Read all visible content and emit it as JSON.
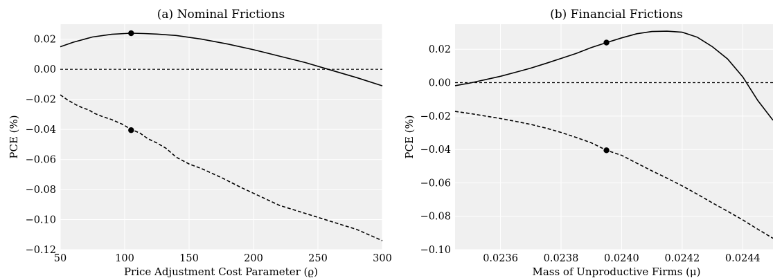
{
  "chart_data": [
    {
      "type": "line",
      "title": "(a) Nominal Frictions",
      "xlabel": "Price Adjustment Cost Parameter (ϱ)",
      "ylabel": "PCE (%)",
      "xlim": [
        50,
        300
      ],
      "ylim": [
        -0.12,
        0.03
      ],
      "xticks": [
        50,
        100,
        150,
        200,
        250,
        300
      ],
      "xtick_labels": [
        "50",
        "100",
        "150",
        "200",
        "250",
        "300"
      ],
      "yticks": [
        -0.12,
        -0.1,
        -0.08,
        -0.06,
        -0.04,
        -0.02,
        0.0,
        0.02
      ],
      "ytick_labels": [
        "−0.12",
        "−0.10",
        "−0.08",
        "−0.06",
        "−0.04",
        "−0.02",
        "0.00",
        "0.02"
      ],
      "grid": true,
      "series": [
        {
          "style": "solid",
          "x": [
            50,
            60,
            75,
            90,
            100,
            105,
            115,
            125,
            140,
            160,
            180,
            200,
            220,
            240,
            260,
            280,
            300
          ],
          "y": [
            0.015,
            0.018,
            0.0215,
            0.0233,
            0.0238,
            0.024,
            0.0238,
            0.0234,
            0.0225,
            0.02,
            0.0168,
            0.013,
            0.0088,
            0.0045,
            -0.0005,
            -0.0055,
            -0.011
          ]
        },
        {
          "style": "dashed",
          "x": [
            50,
            55,
            62,
            67,
            72,
            77,
            82,
            90,
            98,
            105,
            112,
            118,
            125,
            132,
            140,
            150,
            160,
            175,
            190,
            205,
            220,
            235,
            250,
            265,
            280,
            300
          ],
          "y": [
            -0.017,
            -0.02,
            -0.0235,
            -0.0255,
            -0.027,
            -0.0295,
            -0.0312,
            -0.0335,
            -0.0365,
            -0.04,
            -0.0425,
            -0.0462,
            -0.049,
            -0.0525,
            -0.0585,
            -0.063,
            -0.0662,
            -0.072,
            -0.0785,
            -0.0845,
            -0.0905,
            -0.0945,
            -0.0985,
            -0.1025,
            -0.1065,
            -0.114
          ]
        }
      ],
      "markers": [
        {
          "x": 105,
          "y": 0.024
        },
        {
          "x": 105,
          "y": -0.0405
        }
      ],
      "reference_lines": [
        {
          "axis": "y",
          "value": 0.0,
          "style": "dashed"
        }
      ]
    },
    {
      "type": "line",
      "title": "(b) Financial Frictions",
      "xlabel": "Mass of Unproductive Firms (μ)",
      "ylabel": "PCE (%)",
      "xlim": [
        0.02345,
        0.0245
      ],
      "ylim": [
        -0.1,
        0.035
      ],
      "xticks": [
        0.0236,
        0.0238,
        0.024,
        0.0242,
        0.0244
      ],
      "xtick_labels": [
        "0.0236",
        "0.0238",
        "0.0240",
        "0.0242",
        "0.0244"
      ],
      "yticks": [
        -0.1,
        -0.08,
        -0.06,
        -0.04,
        -0.02,
        0.0,
        0.02
      ],
      "ytick_labels": [
        "−0.10",
        "−0.08",
        "−0.06",
        "−0.04",
        "−0.02",
        "0.00",
        "0.02"
      ],
      "grid": true,
      "series": [
        {
          "style": "solid",
          "x": [
            0.02345,
            0.0235,
            0.02355,
            0.0236,
            0.02365,
            0.0237,
            0.02375,
            0.0238,
            0.02385,
            0.0239,
            0.02395,
            0.024,
            0.02405,
            0.0241,
            0.02415,
            0.0242,
            0.02425,
            0.0243,
            0.02435,
            0.0244,
            0.02445,
            0.0245
          ],
          "y": [
            -0.0018,
            -0.0002,
            0.0018,
            0.0038,
            0.0062,
            0.0087,
            0.0115,
            0.0145,
            0.0175,
            0.021,
            0.024,
            0.0268,
            0.0293,
            0.0306,
            0.0308,
            0.0302,
            0.0272,
            0.0215,
            0.0142,
            0.0035,
            -0.0107,
            -0.0225
          ]
        },
        {
          "style": "dashed",
          "x": [
            0.02345,
            0.0235,
            0.02355,
            0.0236,
            0.02365,
            0.0237,
            0.02375,
            0.0238,
            0.02385,
            0.0239,
            0.02395,
            0.024,
            0.02405,
            0.0241,
            0.02415,
            0.0242,
            0.02425,
            0.0243,
            0.02435,
            0.0244,
            0.02445,
            0.0245
          ],
          "y": [
            -0.0172,
            -0.0185,
            -0.02,
            -0.0215,
            -0.0232,
            -0.025,
            -0.0272,
            -0.0298,
            -0.0328,
            -0.036,
            -0.0405,
            -0.0435,
            -0.0482,
            -0.0528,
            -0.0572,
            -0.0618,
            -0.0668,
            -0.072,
            -0.077,
            -0.0822,
            -0.0878,
            -0.0932
          ]
        }
      ],
      "markers": [
        {
          "x": 0.02395,
          "y": 0.024
        },
        {
          "x": 0.02395,
          "y": -0.0405
        }
      ],
      "reference_lines": [
        {
          "axis": "y",
          "value": 0.0,
          "style": "dashed"
        }
      ]
    }
  ]
}
